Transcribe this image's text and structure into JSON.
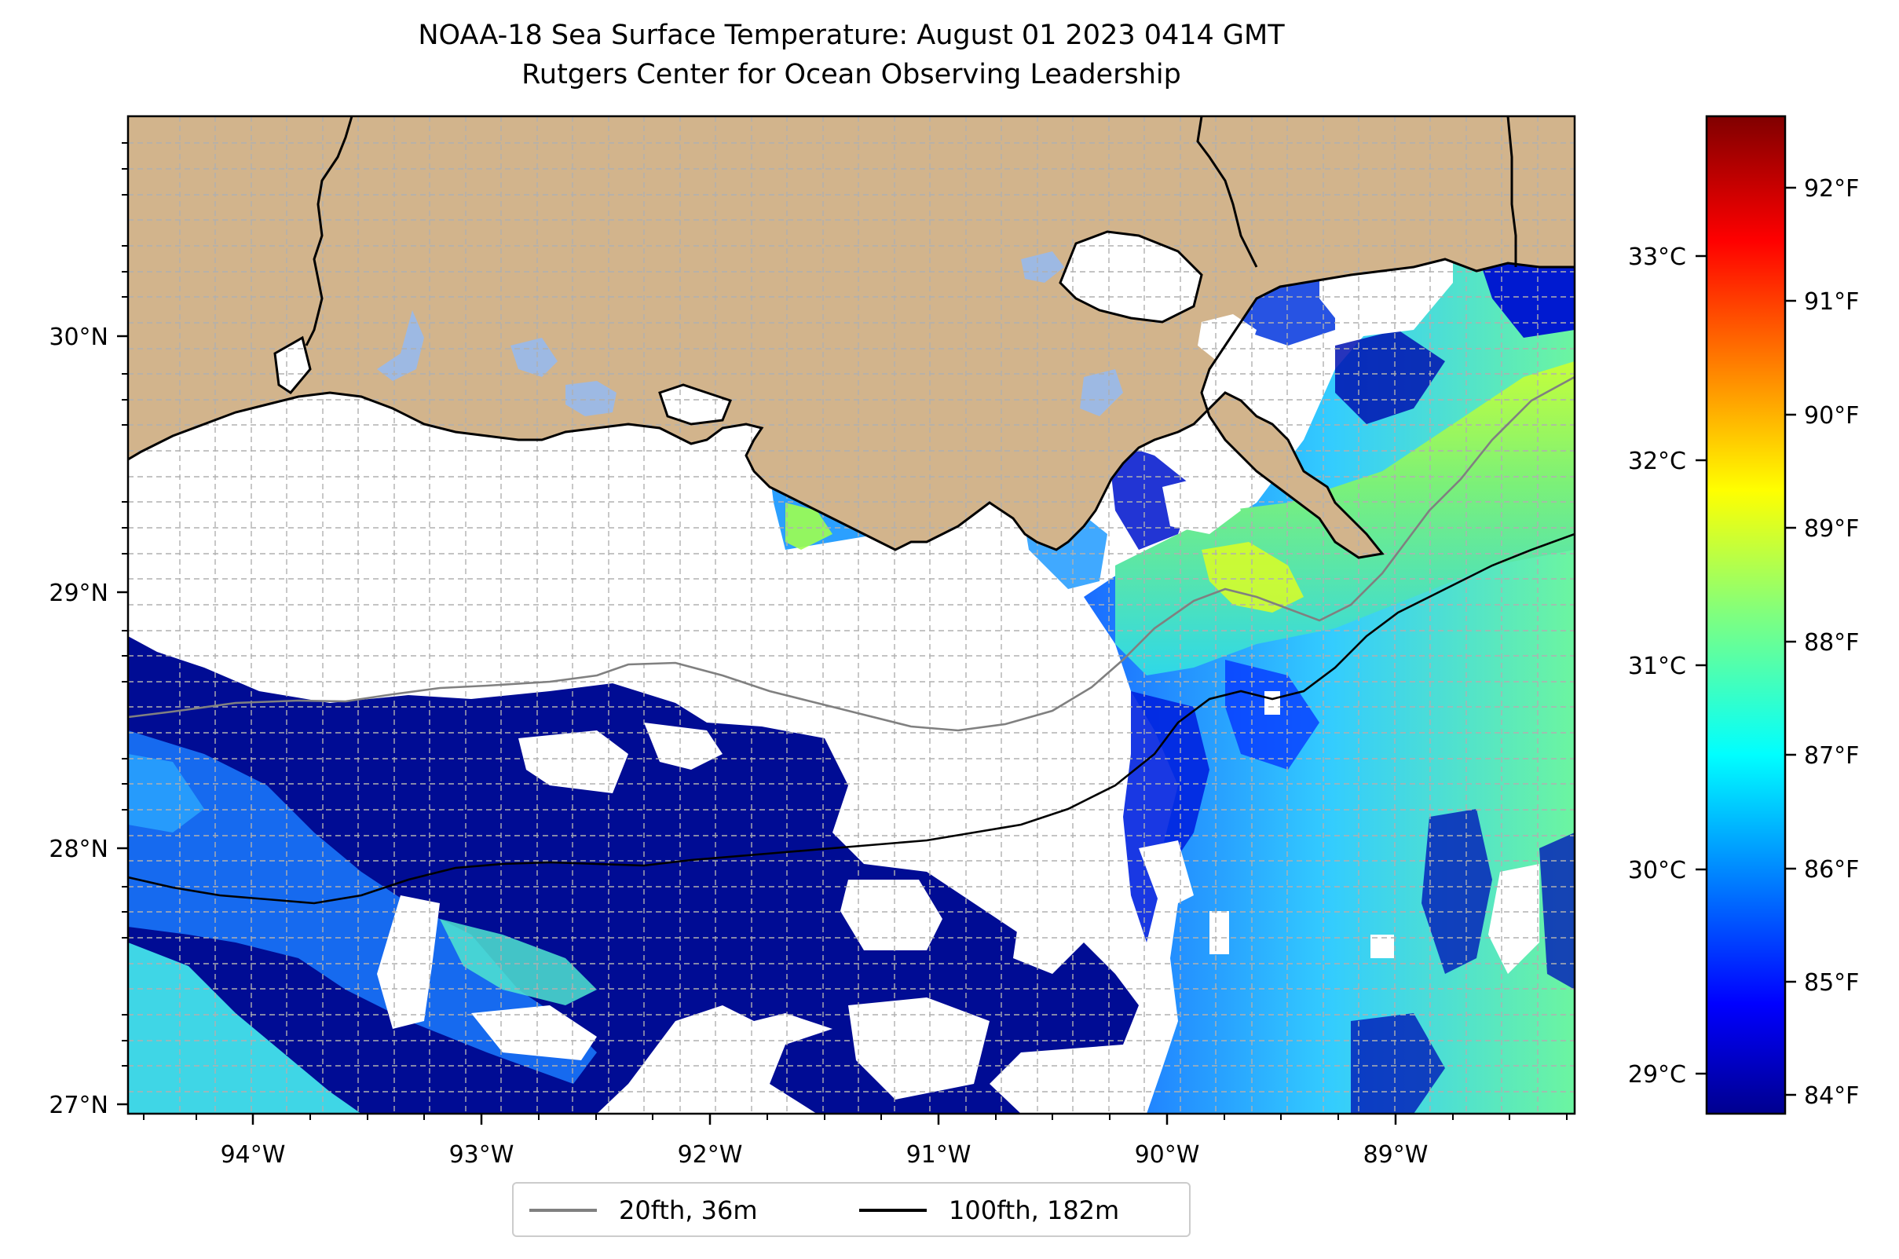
{
  "title": {
    "line1": "NOAA-18 Sea Surface Temperature: August 01 2023 0414 GMT",
    "line2": "Rutgers Center for Ocean Observing Leadership"
  },
  "map": {
    "lon_range": [
      -94.55,
      -88.2
    ],
    "lat_range": [
      26.93,
      30.83
    ],
    "lon_ticks": [
      "94°W",
      "93°W",
      "92°W",
      "91°W",
      "90°W",
      "89°W"
    ],
    "lat_ticks": [
      "30°N",
      "29°N",
      "28°N",
      "27°N"
    ],
    "gridlines": true,
    "colors": {
      "land": "#d2b48c",
      "lakes": "#9db9e3",
      "no_data": "#ffffff",
      "coastline": "#000000",
      "isobath_20": "#808080",
      "isobath_100": "#000000"
    },
    "legend": {
      "placement": "bottom-center",
      "items": [
        {
          "label": "20fth, 36m",
          "color": "#808080"
        },
        {
          "label": "100fth, 182m",
          "color": "#000000"
        }
      ]
    }
  },
  "colorbar": {
    "colormap": "jet",
    "range_f": [
      83.8,
      92.6
    ],
    "f_ticks": [
      "84°F",
      "85°F",
      "86°F",
      "87°F",
      "88°F",
      "89°F",
      "90°F",
      "91°F",
      "92°F"
    ],
    "c_ticks": [
      "29°C",
      "30°C",
      "31°C",
      "32°C",
      "33°C"
    ]
  }
}
